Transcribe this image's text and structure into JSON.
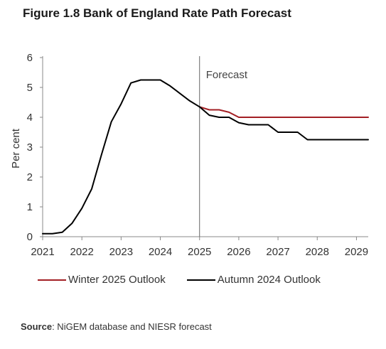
{
  "title": "Figure 1.8 Bank of England Rate Path Forecast",
  "source": {
    "label": "Source",
    "text": ": NiGEM database and NIESR forecast"
  },
  "chart_data": {
    "type": "line",
    "ylabel": "Per cent",
    "ylim": [
      0,
      6
    ],
    "yticks": [
      "0",
      "1",
      "2",
      "3",
      "4",
      "5",
      "6"
    ],
    "xlim": [
      2021,
      2029.3
    ],
    "xticks": [
      "2021",
      "2022",
      "2023",
      "2024",
      "2025",
      "2026",
      "2027",
      "2028",
      "2029"
    ],
    "grid": false,
    "legend_position": "bottom",
    "annotation": {
      "text": "Forecast",
      "x": 2025
    },
    "series": [
      {
        "name": "Winter 2025 Outlook",
        "color": "#a31f24",
        "x": [
          2025.0,
          2025.25,
          2025.5,
          2025.75,
          2026.0,
          2026.25,
          2026.5,
          2026.75,
          2027.0,
          2027.25,
          2027.5,
          2027.75,
          2028.0,
          2028.25,
          2028.5,
          2028.75,
          2029.0,
          2029.3
        ],
        "y": [
          4.35,
          4.25,
          4.25,
          4.17,
          4.0,
          4.0,
          4.0,
          4.0,
          4.0,
          4.0,
          4.0,
          4.0,
          4.0,
          4.0,
          4.0,
          4.0,
          4.0,
          4.0
        ]
      },
      {
        "name": "Autumn 2024 Outlook",
        "color": "#000000",
        "x": [
          2021.0,
          2021.25,
          2021.5,
          2021.75,
          2022.0,
          2022.25,
          2022.5,
          2022.75,
          2023.0,
          2023.25,
          2023.5,
          2023.75,
          2024.0,
          2024.25,
          2024.5,
          2024.75,
          2025.0,
          2025.25,
          2025.5,
          2025.75,
          2026.0,
          2026.25,
          2026.5,
          2026.75,
          2027.0,
          2027.25,
          2027.5,
          2027.75,
          2028.0,
          2028.25,
          2028.5,
          2028.75,
          2029.0,
          2029.3
        ],
        "y": [
          0.1,
          0.1,
          0.15,
          0.45,
          0.95,
          1.6,
          2.75,
          3.85,
          4.45,
          5.15,
          5.25,
          5.25,
          5.25,
          5.05,
          4.8,
          4.55,
          4.35,
          4.07,
          4.0,
          4.0,
          3.82,
          3.75,
          3.75,
          3.75,
          3.5,
          3.5,
          3.5,
          3.25,
          3.25,
          3.25,
          3.25,
          3.25,
          3.25,
          3.25
        ]
      }
    ]
  }
}
